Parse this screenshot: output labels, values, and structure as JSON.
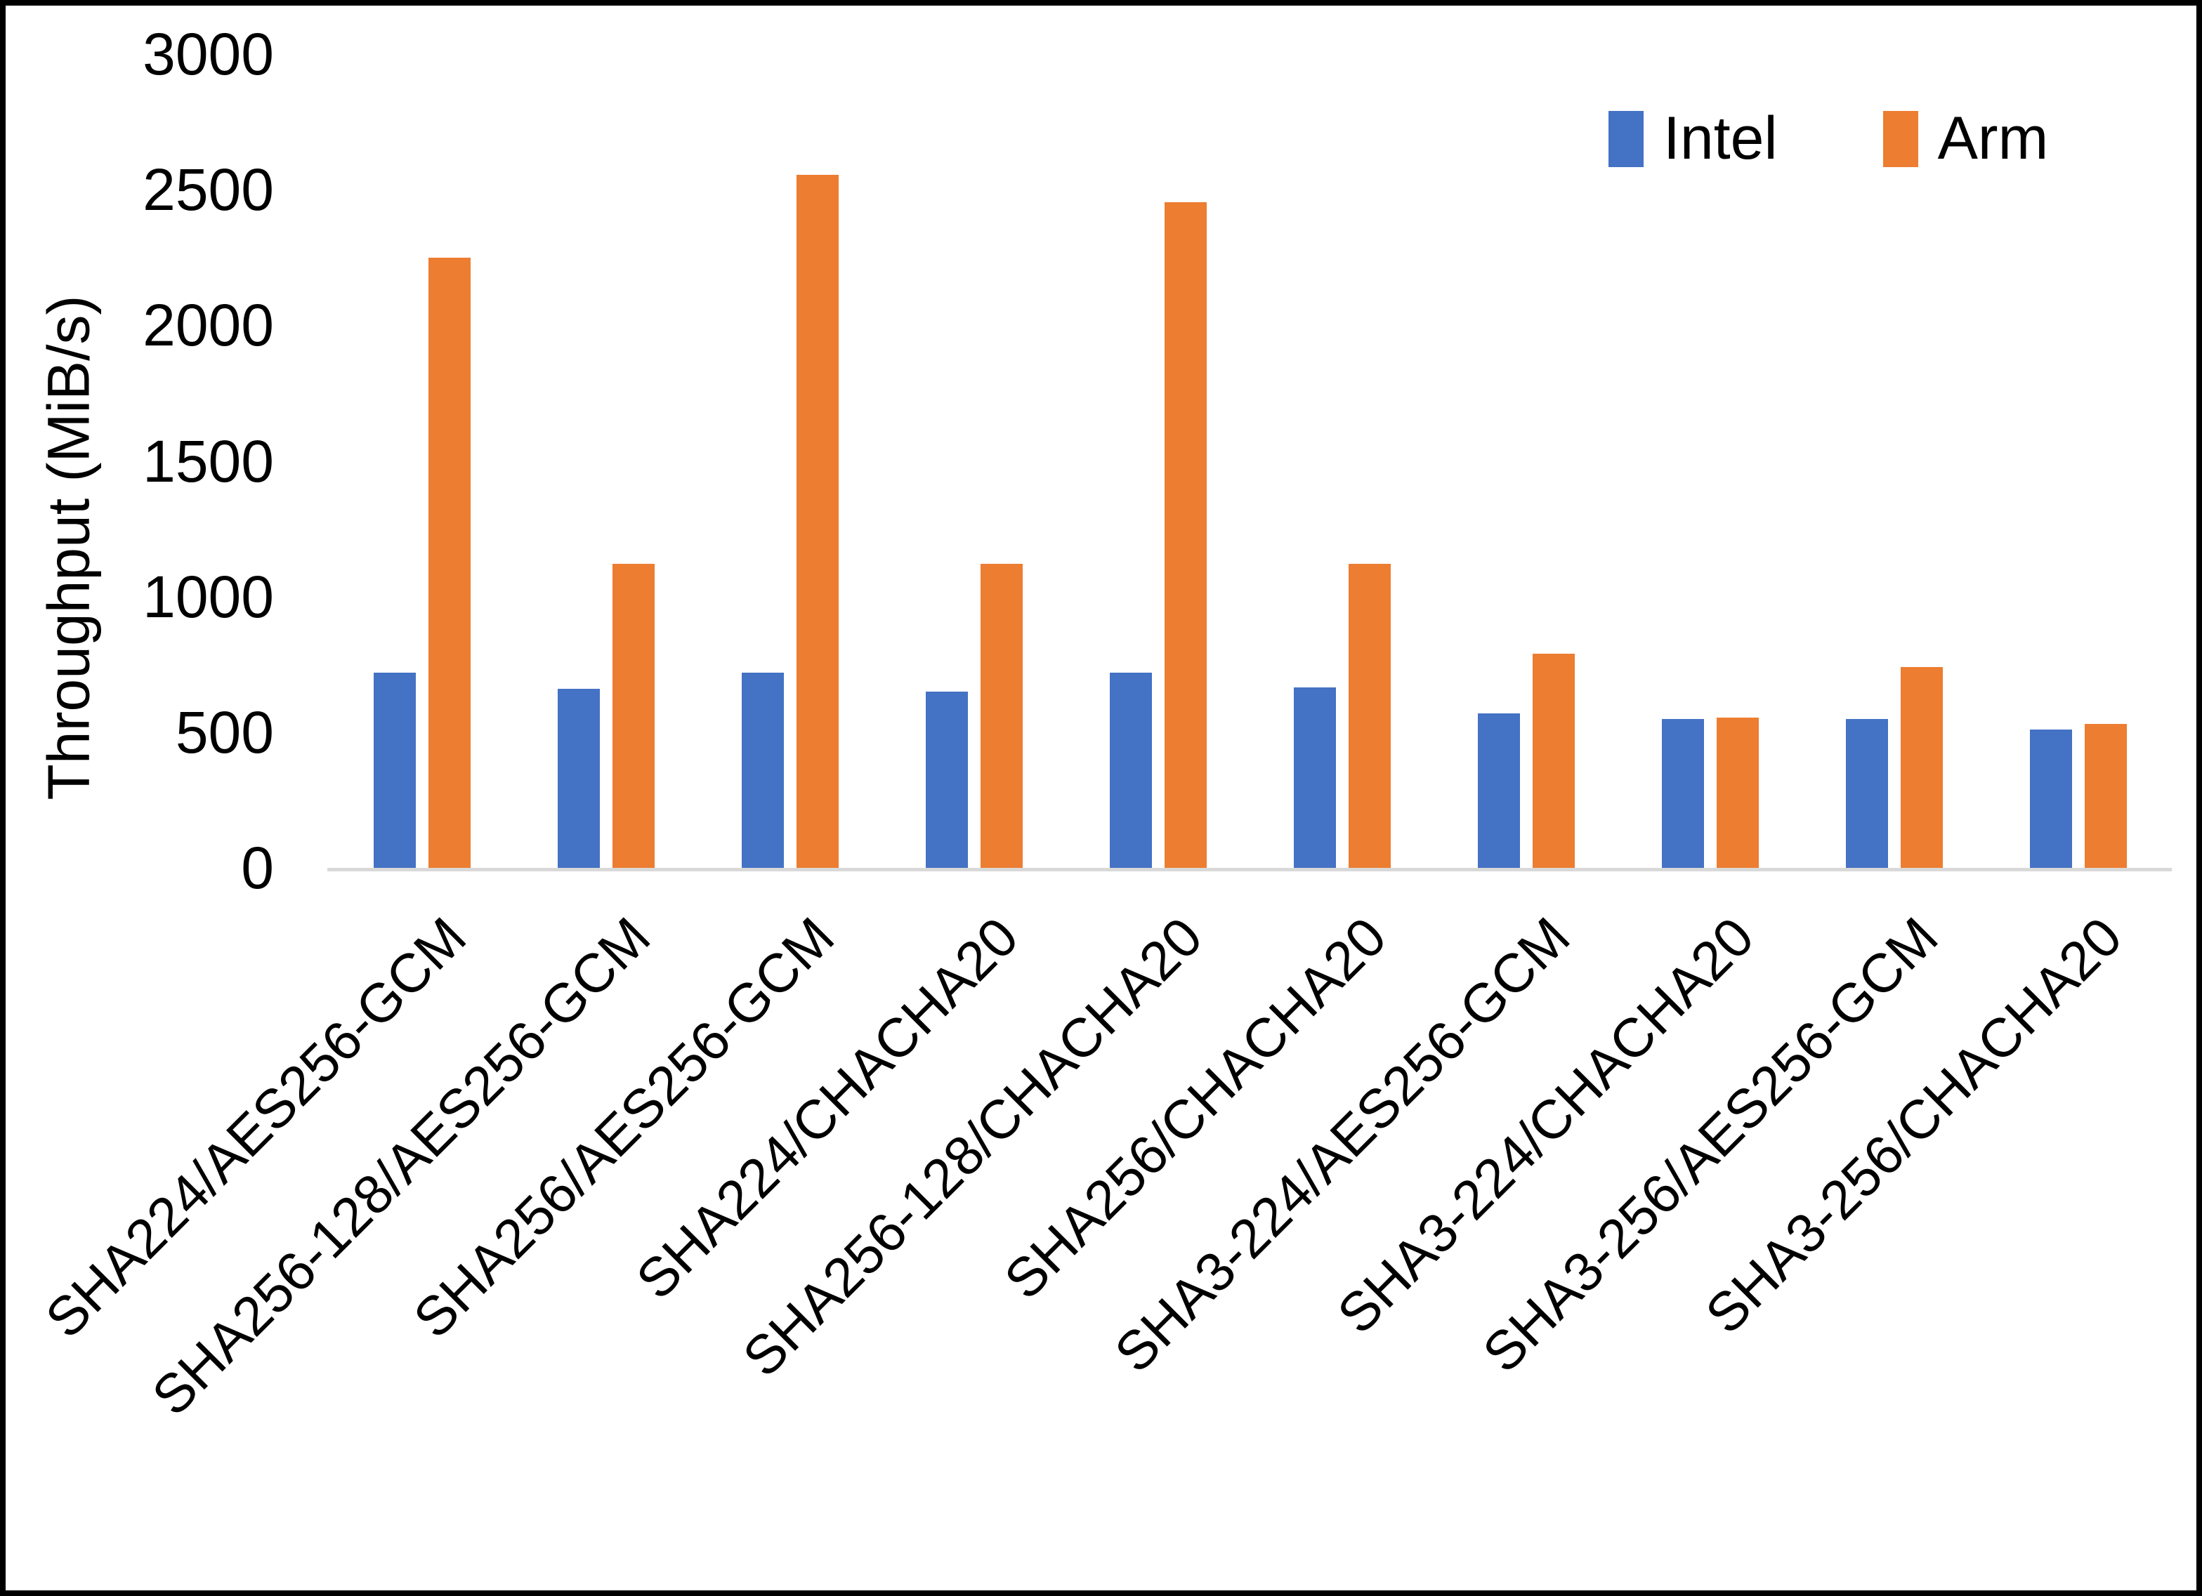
{
  "chart_data": {
    "type": "bar",
    "title": "",
    "xlabel": "",
    "ylabel": "Throughput (MiB/s)",
    "ylim": [
      0,
      3000
    ],
    "yticks": [
      0,
      500,
      1000,
      1500,
      2000,
      2500,
      3000
    ],
    "grid": false,
    "legend_position": "top-right",
    "categories": [
      "SHA224/AES256-GCM",
      "SHA256-128/AES256-GCM",
      "SHA256/AES256-GCM",
      "SHA224/CHACHA20",
      "SHA256-128/CHACHA20",
      "SHA256/CHACHA20",
      "SHA3-224/AES256-GCM",
      "SHA3-224/CHACHA20",
      "SHA3-256/AES256-GCM",
      "SHA3-256/CHACHA20"
    ],
    "series": [
      {
        "name": "Intel",
        "color": "#4472C4",
        "values": [
          720,
          660,
          720,
          650,
          720,
          665,
          570,
          550,
          550,
          510
        ]
      },
      {
        "name": "Arm",
        "color": "#ED7D31",
        "values": [
          2250,
          1120,
          2555,
          1120,
          2455,
          1120,
          790,
          555,
          740,
          530
        ]
      }
    ]
  },
  "colors": {
    "axis_line": "#d9d9d9",
    "text": "#000000",
    "frame": "#000000",
    "background": "#ffffff"
  }
}
